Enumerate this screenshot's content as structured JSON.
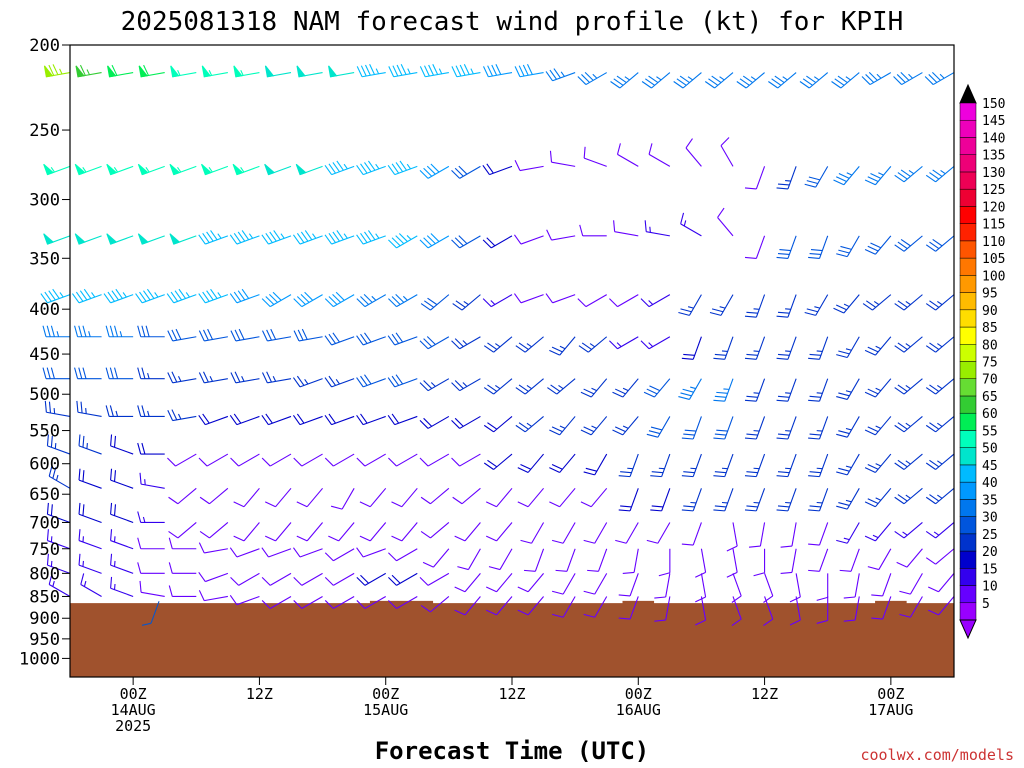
{
  "chart_data": {
    "type": "wind-barb-time-height",
    "title": "2025081318 NAM forecast wind profile (kt) for KPIH",
    "xlabel": "Forecast Time (UTC)",
    "credit": "coolwx.com/models",
    "y_axis": {
      "label": "",
      "scale": "log-pressure",
      "range_hpa": [
        200,
        1050
      ],
      "ticks": [
        200,
        250,
        300,
        350,
        400,
        450,
        500,
        550,
        600,
        650,
        700,
        750,
        800,
        850,
        900,
        950,
        1000
      ]
    },
    "x_axis": {
      "range_hours": [
        -6,
        78
      ],
      "ticks": [
        {
          "hour": 0,
          "lines": [
            "00Z",
            "14AUG",
            "2025"
          ]
        },
        {
          "hour": 12,
          "lines": [
            "12Z"
          ]
        },
        {
          "hour": 24,
          "lines": [
            "00Z",
            "15AUG"
          ]
        },
        {
          "hour": 36,
          "lines": [
            "12Z"
          ]
        },
        {
          "hour": 48,
          "lines": [
            "00Z",
            "16AUG"
          ]
        },
        {
          "hour": 60,
          "lines": [
            "12Z"
          ]
        },
        {
          "hour": 72,
          "lines": [
            "00Z",
            "17AUG"
          ]
        }
      ]
    },
    "barb_times_hours": [
      -6,
      -3,
      0,
      3,
      6,
      9,
      12,
      15,
      18,
      21,
      24,
      27,
      30,
      33,
      36,
      39,
      42,
      45,
      48,
      51,
      54,
      57,
      60,
      63,
      66,
      69,
      72,
      75,
      78
    ],
    "barb_levels_hpa": [
      215,
      275,
      330,
      385,
      430,
      480,
      530,
      585,
      640,
      700,
      750,
      800,
      850
    ],
    "wind_speed_kt": [
      [
        75,
        65,
        60,
        60,
        55,
        55,
        55,
        50,
        50,
        50,
        45,
        45,
        45,
        45,
        40,
        40,
        35,
        35,
        35,
        35,
        35,
        35,
        35,
        35,
        35,
        35,
        35,
        35,
        35
      ],
      [
        55,
        55,
        55,
        55,
        55,
        55,
        55,
        50,
        50,
        45,
        45,
        45,
        40,
        30,
        20,
        10,
        10,
        10,
        10,
        10,
        10,
        10,
        10,
        25,
        30,
        35,
        35,
        35,
        35
      ],
      [
        50,
        50,
        50,
        50,
        50,
        45,
        45,
        45,
        45,
        45,
        45,
        45,
        40,
        30,
        20,
        10,
        10,
        10,
        10,
        15,
        15,
        10,
        10,
        30,
        30,
        30,
        30,
        30,
        30
      ],
      [
        45,
        45,
        45,
        45,
        45,
        45,
        40,
        40,
        40,
        40,
        35,
        35,
        30,
        25,
        15,
        10,
        10,
        10,
        10,
        15,
        25,
        25,
        25,
        25,
        25,
        25,
        25,
        25,
        25
      ],
      [
        35,
        35,
        35,
        30,
        30,
        30,
        30,
        30,
        30,
        30,
        30,
        30,
        30,
        25,
        25,
        25,
        25,
        25,
        15,
        15,
        20,
        25,
        25,
        25,
        25,
        25,
        25,
        25,
        25
      ],
      [
        30,
        30,
        30,
        25,
        25,
        25,
        25,
        25,
        25,
        25,
        30,
        30,
        25,
        25,
        25,
        25,
        25,
        25,
        25,
        30,
        35,
        35,
        25,
        25,
        25,
        25,
        25,
        25,
        25
      ],
      [
        25,
        25,
        25,
        25,
        25,
        20,
        20,
        20,
        20,
        20,
        20,
        20,
        20,
        20,
        20,
        25,
        25,
        25,
        25,
        30,
        30,
        30,
        25,
        25,
        25,
        25,
        25,
        25,
        25
      ],
      [
        25,
        25,
        20,
        20,
        10,
        10,
        10,
        10,
        10,
        10,
        10,
        10,
        10,
        10,
        20,
        20,
        20,
        20,
        25,
        25,
        25,
        25,
        25,
        25,
        25,
        25,
        25,
        25,
        25
      ],
      [
        25,
        20,
        20,
        15,
        10,
        10,
        10,
        10,
        10,
        10,
        10,
        10,
        10,
        10,
        10,
        10,
        10,
        10,
        20,
        20,
        25,
        25,
        25,
        25,
        25,
        25,
        25,
        25,
        25
      ],
      [
        20,
        20,
        20,
        15,
        10,
        10,
        10,
        10,
        10,
        10,
        10,
        10,
        10,
        10,
        10,
        10,
        10,
        10,
        10,
        10,
        10,
        10,
        10,
        10,
        10,
        15,
        15,
        15,
        15
      ],
      [
        15,
        15,
        15,
        10,
        10,
        10,
        10,
        10,
        10,
        10,
        10,
        10,
        10,
        10,
        10,
        10,
        10,
        10,
        10,
        10,
        10,
        10,
        10,
        10,
        10,
        10,
        10,
        10,
        10
      ],
      [
        15,
        15,
        15,
        10,
        10,
        10,
        10,
        10,
        10,
        10,
        20,
        20,
        10,
        10,
        10,
        10,
        10,
        10,
        10,
        10,
        10,
        10,
        10,
        10,
        10,
        10,
        10,
        10,
        10
      ],
      [
        15,
        15,
        15,
        10,
        10,
        10,
        10,
        10,
        10,
        10,
        10,
        10,
        10,
        10,
        10,
        10,
        10,
        10,
        10,
        10,
        10,
        10,
        10,
        10,
        10,
        10,
        10,
        10,
        10
      ]
    ],
    "wind_dir_deg": [
      [
        260,
        260,
        260,
        260,
        260,
        260,
        260,
        260,
        260,
        260,
        260,
        260,
        260,
        260,
        260,
        260,
        250,
        240,
        230,
        230,
        230,
        230,
        230,
        230,
        230,
        230,
        240,
        240,
        240
      ],
      [
        250,
        250,
        250,
        250,
        250,
        250,
        250,
        250,
        250,
        250,
        250,
        250,
        240,
        240,
        250,
        260,
        280,
        290,
        300,
        300,
        320,
        330,
        200,
        200,
        210,
        220,
        220,
        230,
        230
      ],
      [
        250,
        250,
        250,
        250,
        250,
        250,
        250,
        250,
        250,
        250,
        250,
        240,
        240,
        240,
        240,
        250,
        260,
        270,
        280,
        280,
        300,
        320,
        200,
        200,
        200,
        210,
        220,
        230,
        230
      ],
      [
        250,
        250,
        250,
        250,
        250,
        250,
        250,
        240,
        240,
        240,
        240,
        240,
        230,
        230,
        240,
        250,
        250,
        240,
        240,
        240,
        210,
        210,
        200,
        200,
        210,
        220,
        230,
        230,
        230
      ],
      [
        270,
        270,
        270,
        270,
        260,
        260,
        260,
        260,
        260,
        250,
        250,
        250,
        240,
        240,
        230,
        230,
        220,
        230,
        240,
        240,
        200,
        200,
        200,
        200,
        200,
        210,
        220,
        230,
        230
      ],
      [
        270,
        270,
        270,
        270,
        260,
        260,
        260,
        260,
        250,
        250,
        250,
        250,
        240,
        240,
        230,
        230,
        230,
        220,
        220,
        220,
        210,
        200,
        200,
        200,
        200,
        210,
        220,
        230,
        230
      ],
      [
        280,
        280,
        270,
        270,
        260,
        250,
        250,
        250,
        250,
        250,
        250,
        250,
        240,
        240,
        230,
        230,
        220,
        220,
        220,
        210,
        200,
        200,
        200,
        200,
        200,
        210,
        220,
        230,
        230
      ],
      [
        290,
        290,
        290,
        270,
        240,
        240,
        240,
        240,
        240,
        240,
        240,
        240,
        240,
        240,
        230,
        220,
        220,
        210,
        200,
        200,
        200,
        200,
        200,
        200,
        200,
        210,
        220,
        230,
        230
      ],
      [
        300,
        290,
        290,
        280,
        230,
        230,
        220,
        220,
        220,
        210,
        220,
        220,
        230,
        230,
        220,
        220,
        220,
        220,
        200,
        200,
        200,
        200,
        200,
        200,
        200,
        210,
        220,
        230,
        230
      ],
      [
        290,
        290,
        290,
        270,
        230,
        230,
        220,
        220,
        220,
        220,
        220,
        220,
        230,
        220,
        220,
        210,
        210,
        210,
        210,
        210,
        200,
        170,
        190,
        190,
        200,
        210,
        220,
        230,
        230
      ],
      [
        290,
        290,
        290,
        270,
        270,
        260,
        250,
        250,
        250,
        240,
        250,
        240,
        220,
        210,
        210,
        200,
        200,
        200,
        190,
        180,
        170,
        170,
        180,
        190,
        200,
        200,
        210,
        220,
        230
      ],
      [
        290,
        290,
        290,
        270,
        270,
        250,
        240,
        240,
        240,
        240,
        240,
        240,
        240,
        220,
        220,
        220,
        210,
        210,
        200,
        190,
        170,
        160,
        160,
        170,
        180,
        190,
        200,
        210,
        220
      ],
      [
        300,
        300,
        290,
        280,
        270,
        260,
        250,
        240,
        240,
        240,
        240,
        240,
        230,
        220,
        220,
        220,
        210,
        210,
        200,
        190,
        170,
        160,
        160,
        170,
        180,
        190,
        200,
        210,
        220
      ]
    ],
    "surface_pressure_hpa": [
      865,
      865,
      865,
      865,
      865,
      865,
      865,
      865,
      865,
      865,
      860,
      860,
      865,
      865,
      865,
      865,
      865,
      865,
      860,
      865,
      865,
      865,
      865,
      865,
      865,
      865,
      860,
      865,
      865
    ],
    "colors": {
      "terrain": "#a0522d",
      "low_barb_marker": "#0a56c8"
    },
    "colorbar": {
      "labels": [
        "5",
        "10",
        "15",
        "20",
        "25",
        "30",
        "35",
        "40",
        "45",
        "50",
        "55",
        "60",
        "65",
        "70",
        "75",
        "80",
        "85",
        "90",
        "95",
        "100",
        "105",
        "110",
        "115",
        "120",
        "125",
        "130",
        "135",
        "140",
        "145",
        "150"
      ],
      "colors": [
        "#9900ff",
        "#6600ff",
        "#3300ee",
        "#0000cc",
        "#0033cc",
        "#0055dd",
        "#0077ee",
        "#0099ff",
        "#00bbff",
        "#00e5cc",
        "#00ffbb",
        "#00ee55",
        "#33cc33",
        "#66dd33",
        "#99ee00",
        "#ccff00",
        "#ffff00",
        "#ffdd00",
        "#ffbb00",
        "#ff9900",
        "#ff7700",
        "#ff5500",
        "#ff2200",
        "#ff0000",
        "#ee0033",
        "#ee0055",
        "#ee0077",
        "#ee0099",
        "#ee00bb",
        "#ee00dd"
      ]
    }
  }
}
